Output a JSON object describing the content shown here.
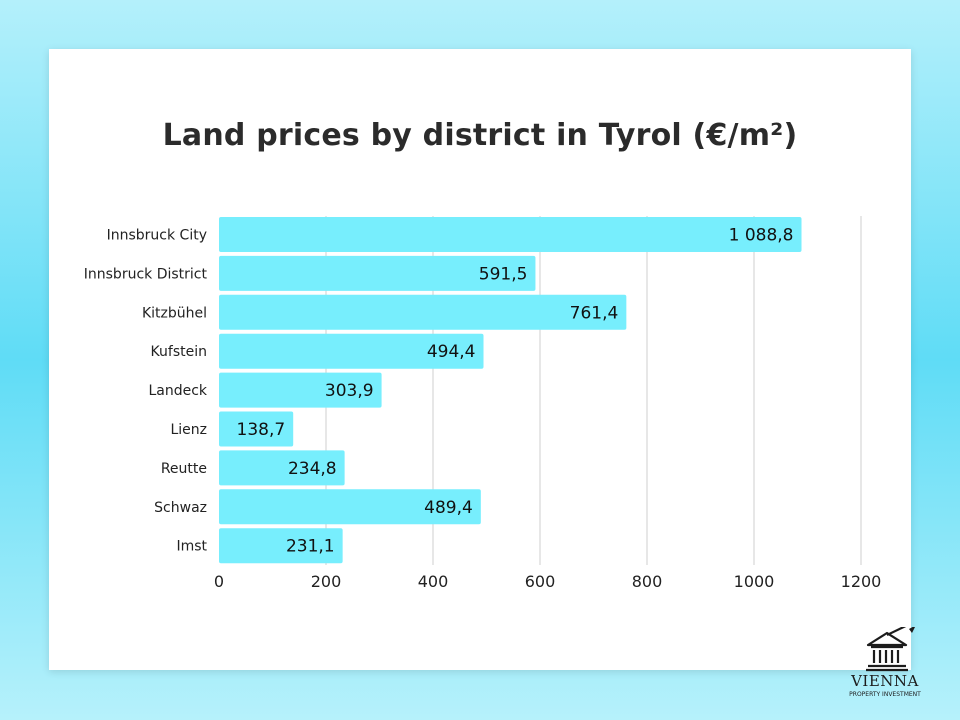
{
  "chart_data": {
    "type": "bar",
    "orientation": "horizontal",
    "title": "Land prices by district in Tyrol (€/m²)",
    "categories": [
      "Innsbruck City",
      "Innsbruck District",
      "Kitzbühel",
      "Kufstein",
      "Landeck",
      "Lienz",
      "Reutte",
      "Schwaz",
      "Imst"
    ],
    "values": [
      1088.8,
      591.5,
      761.4,
      494.4,
      303.9,
      138.7,
      234.8,
      489.4,
      231.1
    ],
    "value_labels": [
      "1 088,8",
      "591,5",
      "761,4",
      "494,4",
      "303,9",
      "138,7",
      "234,8",
      "489,4",
      "231,1"
    ],
    "x_ticks": [
      0,
      200,
      400,
      600,
      800,
      1000,
      1200
    ],
    "xlim": [
      0,
      1200
    ],
    "bar_color": "#77eefd",
    "grid": true
  },
  "logo": {
    "name": "VIENNA",
    "subtitle": "PROPERTY INVESTMENT"
  }
}
